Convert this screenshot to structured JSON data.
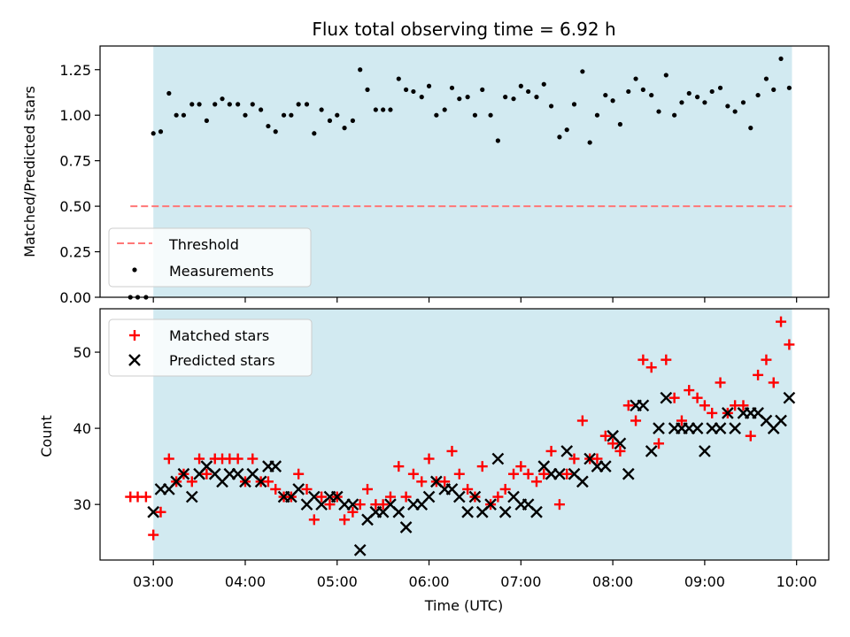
{
  "chart_data": [
    {
      "type": "scatter",
      "title": "Flux total observing time = 6.92 h",
      "xlabel": "",
      "ylabel": "Matched/Predicted stars",
      "xlim": [
        2.42,
        10.35
      ],
      "ylim": [
        0.0,
        1.38
      ],
      "yticks": [
        0.0,
        0.25,
        0.5,
        0.75,
        1.0,
        1.25
      ],
      "ytick_labels": [
        "0.00",
        "0.25",
        "0.50",
        "0.75",
        "1.00",
        "1.25"
      ],
      "observing_window": [
        3.0,
        9.95
      ],
      "window_color": "#add8e6",
      "threshold": {
        "name": "Threshold",
        "value": 0.5,
        "x_range": [
          2.75,
          9.95
        ],
        "color": "#ff7777"
      },
      "legend": {
        "position": "lower-left",
        "entries": [
          "Threshold",
          "Measurements"
        ]
      },
      "series": [
        {
          "name": "Measurements",
          "color": "#000000",
          "x": [
            2.75,
            2.83,
            2.92,
            3.0,
            3.08,
            3.17,
            3.25,
            3.33,
            3.42,
            3.5,
            3.58,
            3.67,
            3.75,
            3.83,
            3.92,
            4.0,
            4.08,
            4.17,
            4.25,
            4.33,
            4.42,
            4.5,
            4.58,
            4.67,
            4.75,
            4.83,
            4.92,
            5.0,
            5.08,
            5.17,
            5.25,
            5.33,
            5.42,
            5.5,
            5.58,
            5.67,
            5.75,
            5.83,
            5.92,
            6.0,
            6.08,
            6.17,
            6.25,
            6.33,
            6.42,
            6.5,
            6.58,
            6.67,
            6.75,
            6.83,
            6.92,
            7.0,
            7.08,
            7.17,
            7.25,
            7.33,
            7.42,
            7.5,
            7.58,
            7.67,
            7.75,
            7.83,
            7.92,
            8.0,
            8.08,
            8.17,
            8.25,
            8.33,
            8.42,
            8.5,
            8.58,
            8.67,
            8.75,
            8.83,
            8.92,
            9.0,
            9.08,
            9.17,
            9.25,
            9.33,
            9.42,
            9.5,
            9.58,
            9.67,
            9.75,
            9.83,
            9.92
          ],
          "values": [
            0.0,
            0.0,
            0.0,
            0.9,
            0.91,
            1.12,
            1.0,
            1.0,
            1.06,
            1.06,
            0.97,
            1.06,
            1.09,
            1.06,
            1.06,
            1.0,
            1.06,
            1.03,
            0.94,
            0.91,
            1.0,
            1.0,
            1.06,
            1.06,
            0.9,
            1.03,
            0.97,
            1.0,
            0.93,
            0.97,
            1.25,
            1.14,
            1.03,
            1.03,
            1.03,
            1.2,
            1.14,
            1.13,
            1.1,
            1.16,
            1.0,
            1.03,
            1.15,
            1.09,
            1.1,
            1.0,
            1.14,
            1.0,
            0.86,
            1.1,
            1.09,
            1.16,
            1.13,
            1.1,
            1.17,
            1.05,
            0.88,
            0.92,
            1.06,
            1.24,
            0.85,
            1.0,
            1.11,
            1.08,
            0.95,
            1.13,
            1.2,
            1.14,
            1.11,
            1.02,
            1.22,
            1.0,
            1.07,
            1.12,
            1.1,
            1.07,
            1.13,
            1.15,
            1.05,
            1.02,
            1.07,
            0.93,
            1.11,
            1.2,
            1.14,
            1.31,
            1.15
          ]
        }
      ]
    },
    {
      "type": "scatter",
      "title": "",
      "xlabel": "Time (UTC)",
      "ylabel": "Count",
      "xlim": [
        2.42,
        10.35
      ],
      "ylim": [
        22.7,
        55.7
      ],
      "xticks": [
        3,
        4,
        5,
        6,
        7,
        8,
        9,
        10
      ],
      "xtick_labels": [
        "03:00",
        "04:00",
        "05:00",
        "06:00",
        "07:00",
        "08:00",
        "09:00",
        "10:00"
      ],
      "yticks": [
        30,
        40,
        50
      ],
      "ytick_labels": [
        "30",
        "40",
        "50"
      ],
      "observing_window": [
        3.0,
        9.95
      ],
      "window_color": "#add8e6",
      "legend": {
        "position": "upper-left",
        "entries": [
          "Matched stars",
          "Predicted stars"
        ]
      },
      "series": [
        {
          "name": "Matched stars",
          "marker": "plus",
          "color": "#ff0000",
          "x": [
            2.75,
            2.83,
            2.92,
            3.0,
            3.08,
            3.17,
            3.25,
            3.33,
            3.42,
            3.5,
            3.58,
            3.67,
            3.75,
            3.83,
            3.92,
            4.0,
            4.08,
            4.17,
            4.25,
            4.33,
            4.42,
            4.5,
            4.58,
            4.67,
            4.75,
            4.83,
            4.92,
            5.0,
            5.08,
            5.17,
            5.25,
            5.33,
            5.42,
            5.5,
            5.58,
            5.67,
            5.75,
            5.83,
            5.92,
            6.0,
            6.08,
            6.17,
            6.25,
            6.33,
            6.42,
            6.5,
            6.58,
            6.67,
            6.75,
            6.83,
            6.92,
            7.0,
            7.08,
            7.17,
            7.25,
            7.33,
            7.42,
            7.5,
            7.58,
            7.67,
            7.75,
            7.83,
            7.92,
            8.0,
            8.08,
            8.17,
            8.25,
            8.33,
            8.42,
            8.5,
            8.58,
            8.67,
            8.75,
            8.83,
            8.92,
            9.0,
            9.08,
            9.17,
            9.25,
            9.33,
            9.42,
            9.5,
            9.58,
            9.67,
            9.75,
            9.83,
            9.92
          ],
          "values": [
            31,
            31,
            31,
            26,
            29,
            36,
            33,
            34,
            33,
            36,
            34,
            36,
            36,
            36,
            36,
            33,
            36,
            33,
            33,
            32,
            31,
            31,
            34,
            32,
            28,
            31,
            30,
            31,
            28,
            29,
            30,
            32,
            30,
            30,
            31,
            35,
            31,
            34,
            33,
            36,
            33,
            33,
            37,
            34,
            32,
            31,
            35,
            30,
            31,
            32,
            34,
            35,
            34,
            33,
            34,
            37,
            30,
            34,
            36,
            41,
            36,
            36,
            39,
            38,
            37,
            43,
            41,
            49,
            48,
            38,
            49,
            44,
            41,
            45,
            44,
            43,
            42,
            46,
            42,
            43,
            43,
            39,
            47,
            49,
            46,
            54,
            51
          ]
        },
        {
          "name": "Predicted stars",
          "marker": "x",
          "color": "#000000",
          "x": [
            3.0,
            3.08,
            3.17,
            3.25,
            3.33,
            3.42,
            3.5,
            3.58,
            3.67,
            3.75,
            3.83,
            3.92,
            4.0,
            4.08,
            4.17,
            4.25,
            4.33,
            4.42,
            4.5,
            4.58,
            4.67,
            4.75,
            4.83,
            4.92,
            5.0,
            5.08,
            5.17,
            5.25,
            5.33,
            5.42,
            5.5,
            5.58,
            5.67,
            5.75,
            5.83,
            5.92,
            6.0,
            6.08,
            6.17,
            6.25,
            6.33,
            6.42,
            6.5,
            6.58,
            6.67,
            6.75,
            6.83,
            6.92,
            7.0,
            7.08,
            7.17,
            7.25,
            7.33,
            7.42,
            7.5,
            7.58,
            7.67,
            7.75,
            7.83,
            7.92,
            8.0,
            8.08,
            8.17,
            8.25,
            8.33,
            8.42,
            8.5,
            8.58,
            8.67,
            8.75,
            8.83,
            8.92,
            9.0,
            9.08,
            9.17,
            9.25,
            9.33,
            9.42,
            9.5,
            9.58,
            9.67,
            9.75,
            9.83,
            9.92
          ],
          "values": [
            29,
            32,
            32,
            33,
            34,
            31,
            34,
            35,
            34,
            33,
            34,
            34,
            33,
            34,
            33,
            35,
            35,
            31,
            31,
            32,
            30,
            31,
            30,
            31,
            31,
            30,
            30,
            24,
            28,
            29,
            29,
            30,
            29,
            27,
            30,
            30,
            31,
            33,
            32,
            32,
            31,
            29,
            31,
            29,
            30,
            36,
            29,
            31,
            30,
            30,
            29,
            35,
            34,
            34,
            37,
            34,
            33,
            36,
            35,
            35,
            39,
            38,
            34,
            43,
            43,
            37,
            40,
            44,
            40,
            40,
            40,
            40,
            37,
            40,
            40,
            42,
            40,
            42,
            42,
            42,
            41,
            40,
            41,
            44
          ]
        }
      ]
    }
  ]
}
